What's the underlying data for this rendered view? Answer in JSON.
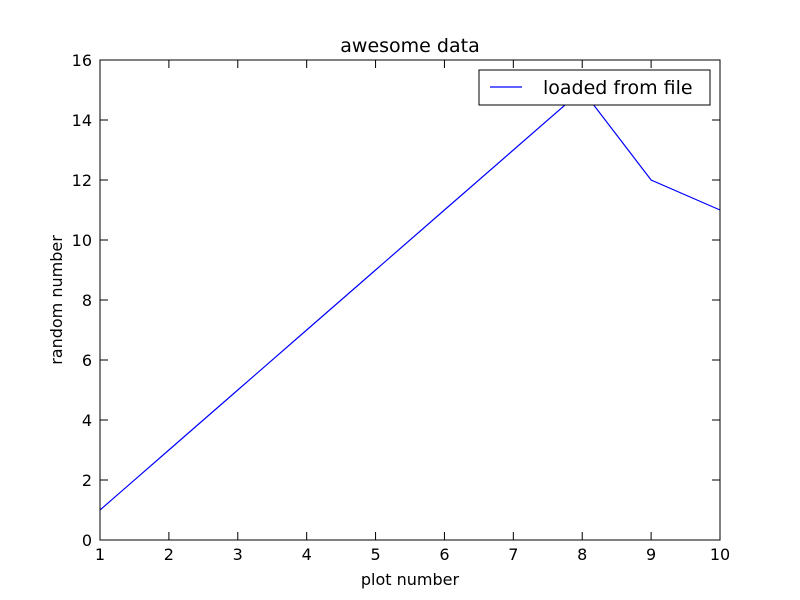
{
  "chart_data": {
    "type": "line",
    "title": "awesome data",
    "xlabel": "plot number",
    "ylabel": "random number",
    "xlim": [
      1,
      10
    ],
    "ylim": [
      0,
      16
    ],
    "xticks": [
      1,
      2,
      3,
      4,
      5,
      6,
      7,
      8,
      9,
      10
    ],
    "yticks": [
      0,
      2,
      4,
      6,
      8,
      10,
      12,
      14,
      16
    ],
    "grid": false,
    "legend_position": "top-right",
    "series": [
      {
        "name": "loaded from file",
        "color": "#0000ff",
        "x": [
          1,
          2,
          3,
          4,
          5,
          6,
          7,
          8,
          9,
          10
        ],
        "y": [
          1,
          3,
          5,
          7,
          9,
          11,
          13,
          15,
          12,
          11
        ]
      }
    ]
  }
}
